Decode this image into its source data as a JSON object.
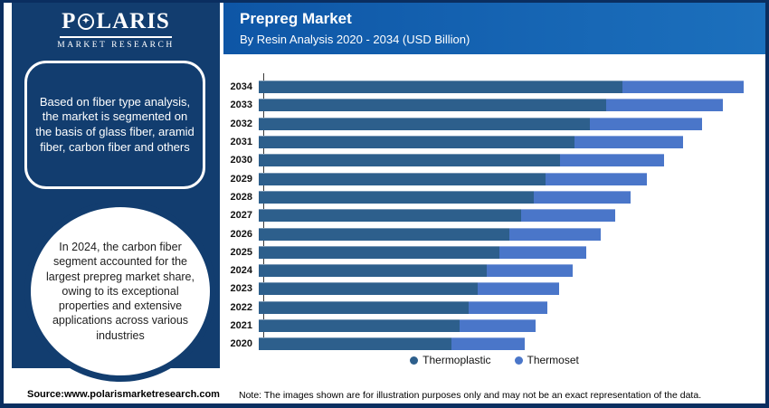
{
  "logo": {
    "word_start": "P",
    "star_glyph": "✦",
    "word_end": "LARIS",
    "tagline": "MARKET RESEARCH"
  },
  "sidebar": {
    "box_text": "Based on fiber type analysis, the market is segmented on the basis of glass fiber, aramid fiber, carbon fiber and others",
    "circle_text": "In 2024, the carbon fiber segment accounted for the largest prepreg market share, owing to its exceptional properties and extensive applications across various industries"
  },
  "header": {
    "title": "Prepreg Market",
    "subtitle": "By Resin Analysis 2020 - 2034 (USD Billion)"
  },
  "footer": {
    "source": "Source:www.polarismarketresearch.com",
    "note": "Note: The images shown are for illustration purposes only and may not be an exact representation of the data."
  },
  "colors": {
    "frame": "#0a2e60",
    "sidebar_panel": "#123d6f",
    "header_gradient_left": "#0e56a6",
    "header_gradient_right": "#1c70bd",
    "thermoplastic": "#2d5f8c",
    "thermoset": "#4a76c9",
    "chart_background": "#ffffff"
  },
  "chart_data": {
    "type": "bar",
    "orientation": "horizontal",
    "stacked": true,
    "title": "Prepreg Market",
    "subtitle": "By Resin Analysis 2020 - 2034 (USD Billion)",
    "xlabel": "",
    "ylabel": "",
    "grid": false,
    "legend_position": "bottom",
    "axis_values_not_shown": true,
    "units_note": "No numeric axis shown in source; values are estimated relative units (USD Billion) read from bar lengths",
    "categories": [
      "2034",
      "2033",
      "2032",
      "2031",
      "2030",
      "2029",
      "2028",
      "2027",
      "2026",
      "2025",
      "2024",
      "2023",
      "2022",
      "2021",
      "2020"
    ],
    "series": [
      {
        "name": "Thermoplastic",
        "color": "#2d5f8c",
        "values": [
          40.2,
          38.4,
          36.6,
          34.9,
          33.3,
          31.7,
          30.4,
          29.0,
          27.7,
          26.6,
          25.2,
          24.2,
          23.2,
          22.2,
          21.3
        ]
      },
      {
        "name": "Thermoset",
        "color": "#4a76c9",
        "values": [
          13.4,
          12.9,
          12.4,
          12.0,
          11.5,
          11.2,
          10.7,
          10.4,
          10.1,
          9.6,
          9.5,
          9.0,
          8.7,
          8.4,
          8.1
        ]
      }
    ]
  }
}
